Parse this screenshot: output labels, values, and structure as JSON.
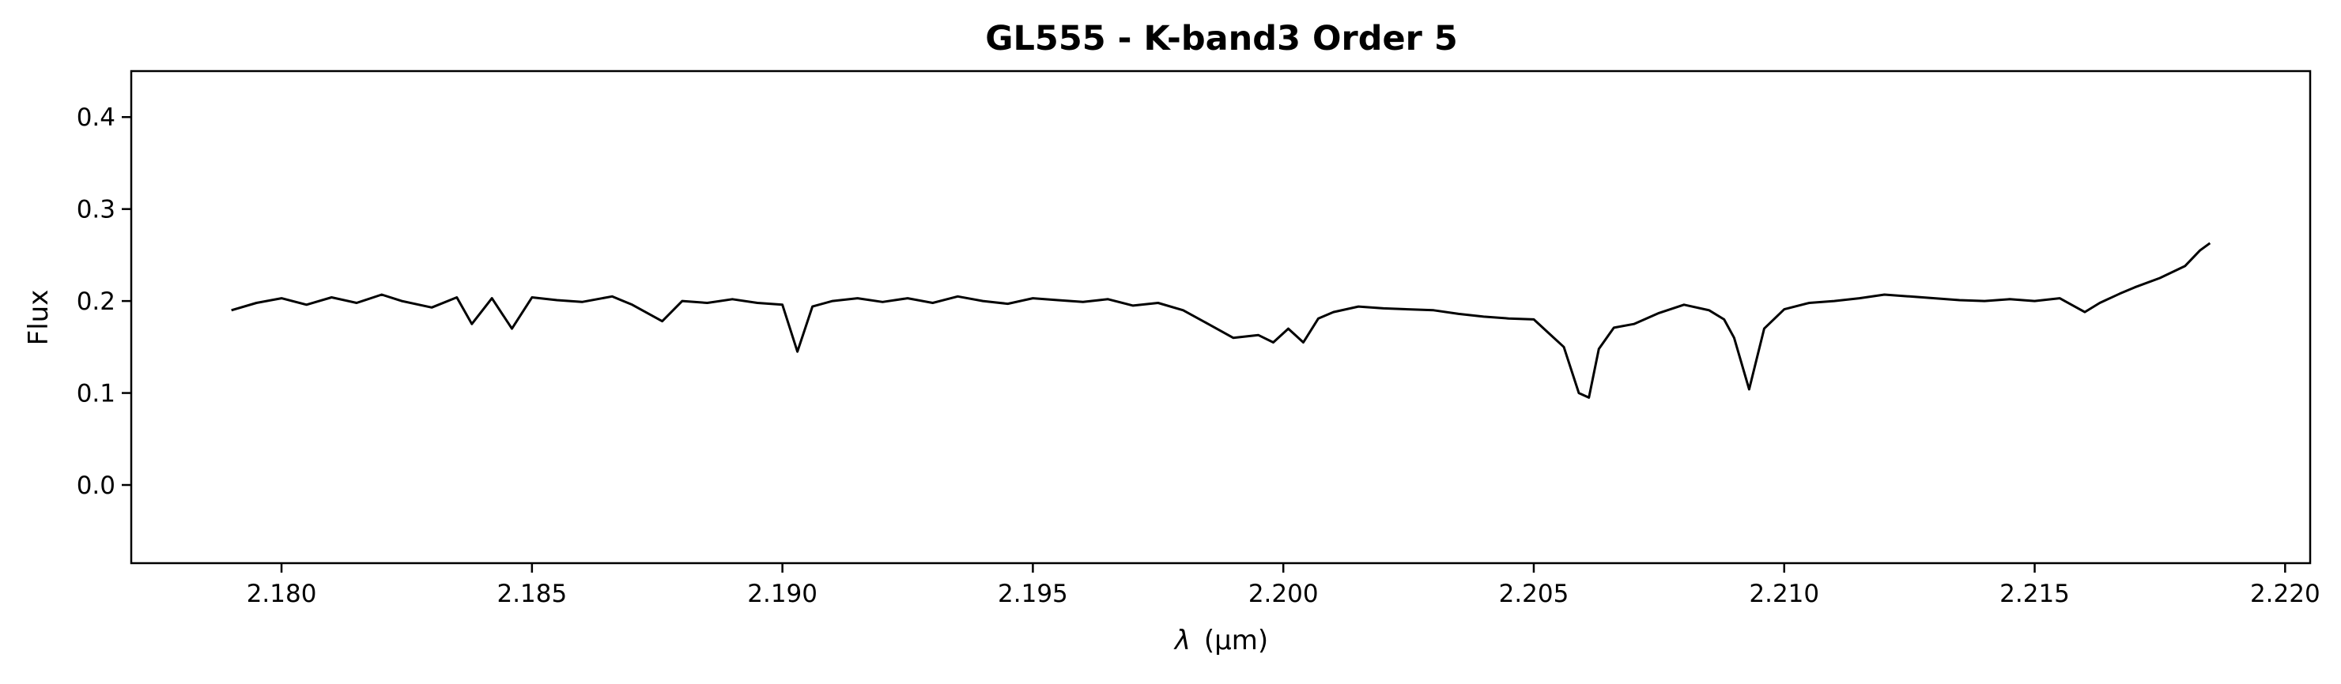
{
  "chart_data": {
    "type": "line",
    "title": "GL555 - K-band3 Order 5",
    "xlabel_symbol": "λ",
    "xlabel_unit": "(μm)",
    "ylabel": "Flux",
    "xlim": [
      2.177,
      2.2205
    ],
    "ylim": [
      -0.085,
      0.45
    ],
    "x_ticks": [
      2.18,
      2.185,
      2.19,
      2.195,
      2.2,
      2.205,
      2.21,
      2.215,
      2.22
    ],
    "x_tick_labels": [
      "2.180",
      "2.185",
      "2.190",
      "2.195",
      "2.200",
      "2.205",
      "2.210",
      "2.215",
      "2.220"
    ],
    "y_ticks": [
      0.0,
      0.1,
      0.2,
      0.3,
      0.4
    ],
    "y_tick_labels": [
      "0.0",
      "0.1",
      "0.2",
      "0.3",
      "0.4"
    ],
    "grid": false,
    "legend": "none",
    "line_color": "#000000",
    "series": [
      {
        "x": [
          2.179,
          2.1795,
          2.18,
          2.1805,
          2.181,
          2.1815,
          2.182,
          2.1824,
          2.183,
          2.1835,
          2.1838,
          2.1842,
          2.1846,
          2.185,
          2.1855,
          2.186,
          2.1866,
          2.187,
          2.1876,
          2.188,
          2.1885,
          2.189,
          2.1895,
          2.19,
          2.1903,
          2.1906,
          2.191,
          2.1915,
          2.192,
          2.1925,
          2.193,
          2.1935,
          2.194,
          2.1945,
          2.195,
          2.1955,
          2.196,
          2.1965,
          2.197,
          2.1975,
          2.198,
          2.1985,
          2.199,
          2.1995,
          2.1998,
          2.2001,
          2.2004,
          2.2007,
          2.201,
          2.2015,
          2.202,
          2.2025,
          2.203,
          2.2035,
          2.204,
          2.2045,
          2.205,
          2.2053,
          2.2056,
          2.2059,
          2.2061,
          2.2063,
          2.2066,
          2.207,
          2.2075,
          2.208,
          2.2085,
          2.2088,
          2.209,
          2.2093,
          2.2096,
          2.21,
          2.2105,
          2.211,
          2.2115,
          2.212,
          2.2125,
          2.213,
          2.2135,
          2.214,
          2.2145,
          2.215,
          2.2155,
          2.216,
          2.2163,
          2.2167,
          2.217,
          2.2175,
          2.218,
          2.2183,
          2.2185
        ],
        "y": [
          0.19,
          0.198,
          0.203,
          0.196,
          0.204,
          0.198,
          0.207,
          0.2,
          0.193,
          0.204,
          0.175,
          0.203,
          0.17,
          0.204,
          0.201,
          0.199,
          0.205,
          0.196,
          0.178,
          0.2,
          0.198,
          0.202,
          0.198,
          0.196,
          0.145,
          0.194,
          0.2,
          0.203,
          0.199,
          0.203,
          0.198,
          0.205,
          0.2,
          0.197,
          0.203,
          0.201,
          0.199,
          0.202,
          0.195,
          0.198,
          0.19,
          0.175,
          0.16,
          0.163,
          0.155,
          0.17,
          0.155,
          0.181,
          0.188,
          0.194,
          0.192,
          0.191,
          0.19,
          0.186,
          0.183,
          0.181,
          0.18,
          0.165,
          0.15,
          0.1,
          0.095,
          0.148,
          0.171,
          0.175,
          0.187,
          0.196,
          0.19,
          0.18,
          0.16,
          0.104,
          0.17,
          0.191,
          0.198,
          0.2,
          0.203,
          0.207,
          0.205,
          0.203,
          0.201,
          0.2,
          0.202,
          0.2,
          0.203,
          0.188,
          0.198,
          0.208,
          0.215,
          0.225,
          0.238,
          0.255,
          0.263
        ]
      }
    ]
  }
}
